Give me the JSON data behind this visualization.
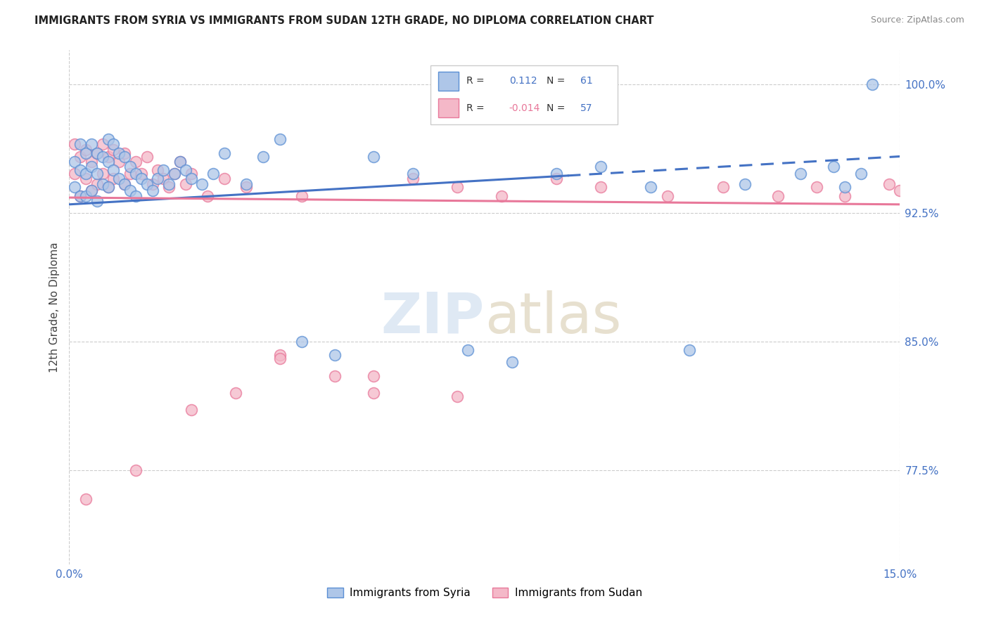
{
  "title": "IMMIGRANTS FROM SYRIA VS IMMIGRANTS FROM SUDAN 12TH GRADE, NO DIPLOMA CORRELATION CHART",
  "source": "Source: ZipAtlas.com",
  "ylabel": "12th Grade, No Diploma",
  "xlim": [
    0.0,
    0.15
  ],
  "ylim": [
    0.72,
    1.02
  ],
  "ytick_values": [
    0.775,
    0.85,
    0.925,
    1.0
  ],
  "xtick_values": [
    0.0,
    0.15
  ],
  "legend_r_syria": "0.112",
  "legend_n_syria": "61",
  "legend_r_sudan": "-0.014",
  "legend_n_sudan": "57",
  "syria_fill_color": "#aec6e8",
  "sudan_fill_color": "#f4b8c8",
  "syria_edge_color": "#5b8fd4",
  "sudan_edge_color": "#e8789a",
  "syria_line_color": "#4472c4",
  "sudan_line_color": "#e8789a",
  "background_color": "#ffffff",
  "grid_color": "#cccccc",
  "ytick_color": "#4472c4",
  "xtick_color": "#4472c4",
  "syria_scatter_x": [
    0.001,
    0.001,
    0.002,
    0.002,
    0.002,
    0.003,
    0.003,
    0.003,
    0.004,
    0.004,
    0.004,
    0.005,
    0.005,
    0.005,
    0.006,
    0.006,
    0.007,
    0.007,
    0.007,
    0.008,
    0.008,
    0.009,
    0.009,
    0.01,
    0.01,
    0.011,
    0.011,
    0.012,
    0.012,
    0.013,
    0.014,
    0.015,
    0.016,
    0.017,
    0.018,
    0.019,
    0.02,
    0.021,
    0.022,
    0.024,
    0.026,
    0.028,
    0.032,
    0.035,
    0.038,
    0.042,
    0.048,
    0.055,
    0.062,
    0.072,
    0.08,
    0.088,
    0.096,
    0.105,
    0.112,
    0.122,
    0.132,
    0.138,
    0.14,
    0.143,
    0.145
  ],
  "syria_scatter_y": [
    0.955,
    0.94,
    0.965,
    0.95,
    0.935,
    0.96,
    0.948,
    0.935,
    0.965,
    0.952,
    0.938,
    0.96,
    0.948,
    0.932,
    0.958,
    0.942,
    0.968,
    0.955,
    0.94,
    0.965,
    0.95,
    0.96,
    0.945,
    0.958,
    0.942,
    0.952,
    0.938,
    0.948,
    0.935,
    0.945,
    0.942,
    0.938,
    0.945,
    0.95,
    0.942,
    0.948,
    0.955,
    0.95,
    0.945,
    0.942,
    0.948,
    0.96,
    0.942,
    0.958,
    0.968,
    0.85,
    0.842,
    0.958,
    0.948,
    0.845,
    0.838,
    0.948,
    0.952,
    0.94,
    0.845,
    0.942,
    0.948,
    0.952,
    0.94,
    0.948,
    1.0
  ],
  "sudan_scatter_x": [
    0.001,
    0.001,
    0.002,
    0.002,
    0.003,
    0.003,
    0.004,
    0.004,
    0.005,
    0.005,
    0.006,
    0.006,
    0.007,
    0.007,
    0.008,
    0.008,
    0.009,
    0.01,
    0.01,
    0.011,
    0.012,
    0.013,
    0.014,
    0.015,
    0.016,
    0.017,
    0.018,
    0.019,
    0.02,
    0.021,
    0.022,
    0.025,
    0.028,
    0.032,
    0.038,
    0.042,
    0.048,
    0.055,
    0.062,
    0.07,
    0.078,
    0.088,
    0.096,
    0.108,
    0.118,
    0.128,
    0.135,
    0.14,
    0.148,
    0.15,
    0.003,
    0.012,
    0.022,
    0.03,
    0.038,
    0.055,
    0.07
  ],
  "sudan_scatter_y": [
    0.965,
    0.948,
    0.958,
    0.935,
    0.962,
    0.945,
    0.955,
    0.938,
    0.96,
    0.942,
    0.965,
    0.948,
    0.958,
    0.94,
    0.962,
    0.945,
    0.955,
    0.96,
    0.942,
    0.948,
    0.955,
    0.948,
    0.958,
    0.942,
    0.95,
    0.945,
    0.94,
    0.948,
    0.955,
    0.942,
    0.948,
    0.935,
    0.945,
    0.94,
    0.842,
    0.935,
    0.83,
    0.82,
    0.945,
    0.94,
    0.935,
    0.945,
    0.94,
    0.935,
    0.94,
    0.935,
    0.94,
    0.935,
    0.942,
    0.938,
    0.758,
    0.775,
    0.81,
    0.82,
    0.84,
    0.83,
    0.818
  ],
  "syria_trend_x0": 0.0,
  "syria_trend_x1": 0.15,
  "syria_trend_y0": 0.93,
  "syria_trend_y1": 0.958,
  "syria_dash_cutoff": 0.09,
  "sudan_trend_x0": 0.0,
  "sudan_trend_x1": 0.15,
  "sudan_trend_y0": 0.934,
  "sudan_trend_y1": 0.93
}
